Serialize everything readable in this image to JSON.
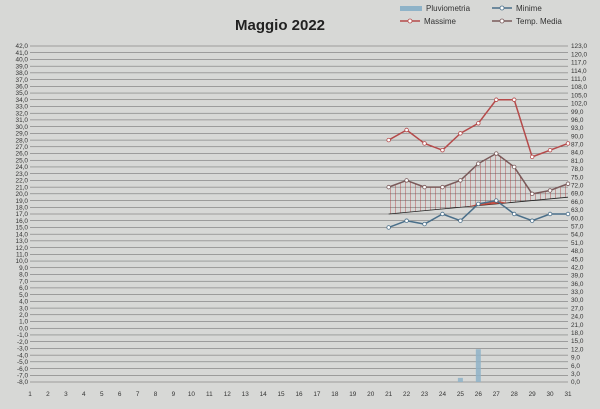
{
  "chart_data": {
    "type": "line",
    "title": "Maggio 2022",
    "xlabel": "",
    "ylabel": "",
    "categories": [
      "1",
      "2",
      "3",
      "4",
      "5",
      "6",
      "7",
      "8",
      "9",
      "10",
      "11",
      "12",
      "13",
      "14",
      "15",
      "16",
      "17",
      "18",
      "19",
      "20",
      "21",
      "22",
      "23",
      "24",
      "25",
      "26",
      "27",
      "28",
      "29",
      "30",
      "31"
    ],
    "y_left": {
      "min": -8.0,
      "max": 42.0,
      "step": 1.0
    },
    "y_right": {
      "min": 0.0,
      "max": 123.0,
      "step": 3.0
    },
    "grid": true,
    "legend_position": "top-right",
    "legend": [
      {
        "name": "Pluviometria",
        "symbol": "bar"
      },
      {
        "name": "Minime",
        "symbol": "line"
      },
      {
        "name": "Massime",
        "symbol": "line"
      },
      {
        "name": "Temp. Media",
        "symbol": "line"
      }
    ],
    "series": [
      {
        "name": "Massime",
        "axis": "left",
        "color": "#b54a4a",
        "x": [
          21,
          22,
          23,
          24,
          25,
          26,
          27,
          28,
          29,
          30,
          31
        ],
        "values": [
          28.0,
          29.5,
          27.5,
          26.5,
          29.0,
          30.5,
          34.0,
          34.0,
          25.5,
          26.5,
          27.5
        ]
      },
      {
        "name": "Temp. Media",
        "axis": "left",
        "color": "#7a5a5a",
        "x": [
          21,
          22,
          23,
          24,
          25,
          26,
          27,
          28,
          29,
          30,
          31
        ],
        "values": [
          21.0,
          22.0,
          21.0,
          21.0,
          22.0,
          24.5,
          26.0,
          24.0,
          20.0,
          20.5,
          21.5
        ]
      },
      {
        "name": "Minime",
        "axis": "left",
        "color": "#4a6f8a",
        "x": [
          21,
          22,
          23,
          24,
          25,
          26,
          27,
          28,
          29,
          30,
          31
        ],
        "values": [
          15.0,
          16.0,
          15.5,
          17.0,
          16.0,
          18.5,
          19.0,
          17.0,
          16.0,
          17.0,
          17.0
        ]
      },
      {
        "name": "Pluviometria",
        "axis": "right",
        "color": "#8fb3c8",
        "x": [
          25,
          26
        ],
        "values": [
          1.5,
          12.0
        ]
      }
    ],
    "annotations": {
      "reference_line_start": {
        "x": 21,
        "y": 17.0
      },
      "reference_line_end": {
        "x": 31,
        "y": 19.5
      }
    }
  }
}
